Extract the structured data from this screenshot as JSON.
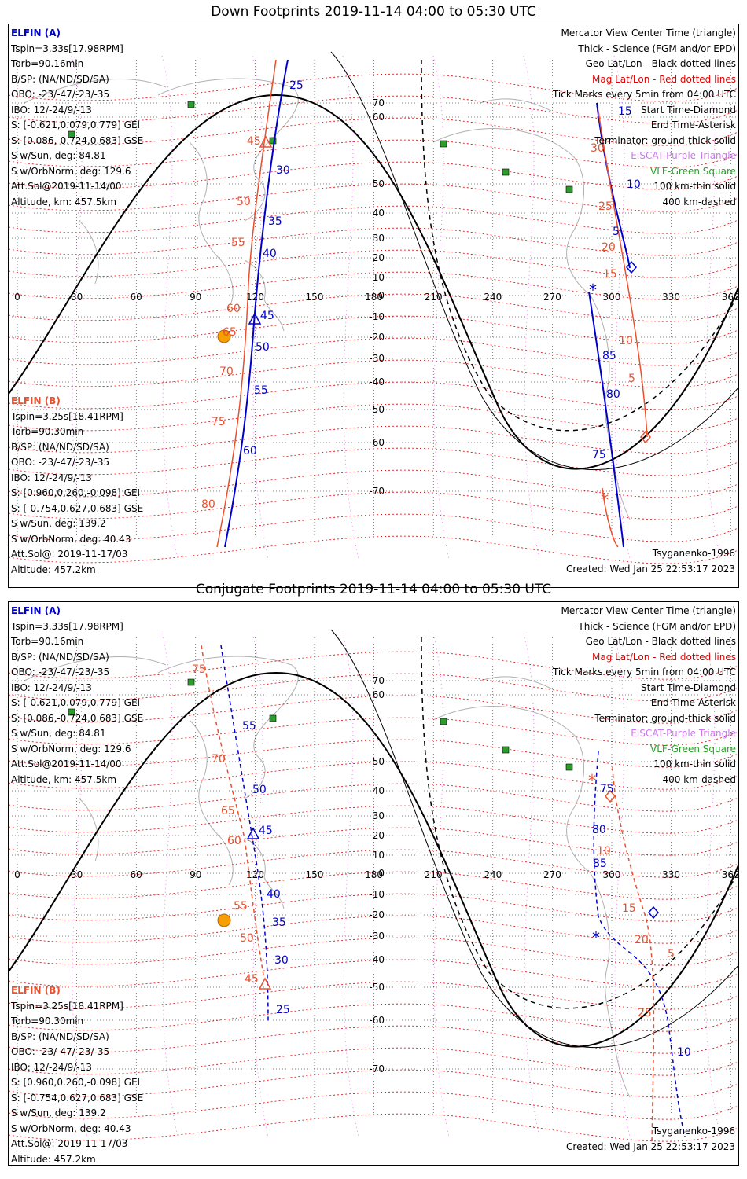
{
  "panels": [
    {
      "title": "Down Footprints 2019-11-14 04:00 to 05:30 UTC",
      "elfin_a": {
        "name": "ELFIN (A)",
        "lines": [
          "Tspin=3.33s[17.98RPM]",
          "Torb=90.16min",
          "B/SP: (NA/ND/SD/SA)",
          "OBO: -23/-47/-23/-35",
          "IBO: 12/-24/9/-13",
          "S: [-0.621,0.079,0.779] GEI",
          "S: [0.086,-0.724,0.683] GSE",
          "S w/Sun, deg: 84.81",
          "S w/OrbNorm, deg: 129.6",
          "Att.Sol@2019-11-14/00",
          "Altitude, km: 457.5km"
        ]
      },
      "elfin_b": {
        "name": "ELFIN (B)",
        "lines": [
          "Tspin=3.25s[18.41RPM]",
          "Torb=90.30min",
          "B/SP: (NA/ND/SD/SA)",
          "OBO: -23/-47/-23/-35",
          "IBO: 12/-24/9/-13",
          "S: [0.960,0.260,-0.098] GEI",
          "S: [-0.754,0.627,0.683] GSE",
          "S w/Sun, deg: 139.2",
          "S w/OrbNorm, deg: 40.43",
          "Att.Sol@: 2019-11-17/03",
          "Altitude: 457.2km"
        ]
      },
      "legend": [
        {
          "text": "Mercator View Center Time (triangle)",
          "color": "#000000"
        },
        {
          "text": "Thick - Science (FGM and/or EPD)",
          "color": "#000000"
        },
        {
          "text": "Geo Lat/Lon - Black dotted lines",
          "color": "#000000"
        },
        {
          "text": "Mag Lat/Lon - Red dotted lines",
          "color": "#e00000"
        },
        {
          "text": "Tick Marks every 5min from 04:00 UTC",
          "color": "#000000"
        },
        {
          "text": "Start Time-Diamond",
          "color": "#000000"
        },
        {
          "text": "End Time-Asterisk",
          "color": "#000000"
        },
        {
          "text": "Terminator: ground-thick solid",
          "color": "#000000"
        },
        {
          "text": "EISCAT-Purple Triangle",
          "color": "#cc77ee"
        },
        {
          "text": "VLF-Green Square",
          "color": "#2a9d2a"
        },
        {
          "text": "100 km-thin solid",
          "color": "#000000"
        },
        {
          "text": "400 km-dashed",
          "color": "#000000"
        }
      ],
      "model": "Tsyganenko-1996",
      "created": "Created: Wed Jan 25 22:53:17 2023",
      "track_a_labels": [
        "5",
        "10",
        "15",
        "25",
        "30",
        "35",
        "40",
        "45",
        "50",
        "55",
        "60",
        "75",
        "80",
        "85"
      ],
      "track_b_labels": [
        "5",
        "10",
        "15",
        "20",
        "25",
        "30",
        "45",
        "50",
        "55",
        "60",
        "65",
        "70",
        "75",
        "80"
      ]
    },
    {
      "title": "Conjugate Footprints 2019-11-14 04:00 to 05:30 UTC",
      "elfin_a": {
        "name": "ELFIN (A)",
        "lines": [
          "Tspin=3.33s[17.98RPM]",
          "Torb=90.16min",
          "B/SP: (NA/ND/SD/SA)",
          "OBO: -23/-47/-23/-35",
          "IBO: 12/-24/9/-13",
          "S: [-0.621,0.079,0.779] GEI",
          "S: [0.086,-0.724,0.683] GSE",
          "S w/Sun, deg: 84.81",
          "S w/OrbNorm, deg: 129.6",
          "Att.Sol@2019-11-14/00",
          "Altitude, km: 457.5km"
        ]
      },
      "elfin_b": {
        "name": "ELFIN (B)",
        "lines": [
          "Tspin=3.25s[18.41RPM]",
          "Torb=90.30min",
          "B/SP: (NA/ND/SD/SA)",
          "OBO: -23/-47/-23/-35",
          "IBO: 12/-24/9/-13",
          "S: [0.960,0.260,-0.098] GEI",
          "S: [-0.754,0.627,0.683] GSE",
          "S w/Sun, deg: 139.2",
          "S w/OrbNorm, deg: 40.43",
          "Att.Sol@: 2019-11-17/03",
          "Altitude: 457.2km"
        ]
      },
      "legend": [
        {
          "text": "Mercator View Center Time (triangle)",
          "color": "#000000"
        },
        {
          "text": "Thick - Science (FGM and/or EPD)",
          "color": "#000000"
        },
        {
          "text": "Geo Lat/Lon - Black dotted lines",
          "color": "#000000"
        },
        {
          "text": "Mag Lat/Lon - Red dotted lines",
          "color": "#e00000"
        },
        {
          "text": "Tick Marks every 5min from 04:00 UTC",
          "color": "#000000"
        },
        {
          "text": "Start Time-Diamond",
          "color": "#000000"
        },
        {
          "text": "End Time-Asterisk",
          "color": "#000000"
        },
        {
          "text": "Terminator: ground-thick solid",
          "color": "#000000"
        },
        {
          "text": "EISCAT-Purple Triangle",
          "color": "#cc77ee"
        },
        {
          "text": "VLF-Green Square",
          "color": "#2a9d2a"
        },
        {
          "text": "100 km-thin solid",
          "color": "#000000"
        },
        {
          "text": "400 km-dashed",
          "color": "#000000"
        }
      ],
      "model": "Tsyganenko-1996",
      "created": "Created: Wed Jan 25 22:53:17 2023",
      "track_a_labels": [
        "10",
        "25",
        "30",
        "35",
        "40",
        "45",
        "50",
        "55",
        "75",
        "80",
        "85"
      ],
      "track_b_labels": [
        "5",
        "10",
        "15",
        "20",
        "25",
        "45",
        "50",
        "55",
        "60",
        "65",
        "70",
        "75"
      ]
    }
  ],
  "lon_labels": [
    "0",
    "30",
    "60",
    "90",
    "120",
    "150",
    "180",
    "210",
    "240",
    "270",
    "300",
    "330",
    "360"
  ],
  "lat_labels": [
    "70",
    "60",
    "50",
    "40",
    "30",
    "20",
    "10",
    "0",
    "-10",
    "-20",
    "-30",
    "-40",
    "-50",
    "-60",
    "-70"
  ],
  "colors": {
    "elfin_a": "#0000cc",
    "elfin_b": "#e8502e",
    "mag_grid": "#e00000",
    "geo_grid": "#000000",
    "eiscat": "#cc77ee",
    "vlf": "#2a9d2a",
    "coast": "#b0b0b0",
    "sun": "#f5a000"
  }
}
